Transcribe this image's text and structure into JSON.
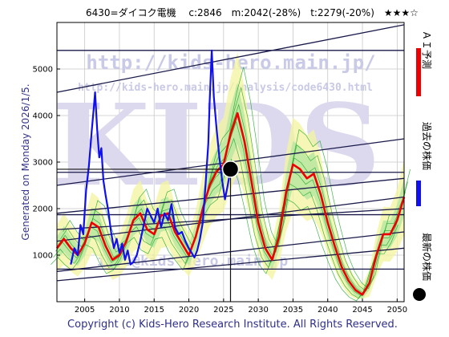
{
  "header": {
    "title": "6430=ダイコク電機　 c:2846　m:2042(-28%)　t:2279(-20%)　★★★☆"
  },
  "side_label": "Generated on Monday 2026/1/5.",
  "footer": "Copyright (c) Kids-Hero Research Institute. All Rights Reserved.",
  "watermark": {
    "url": "http://kids-hero.main.jp/",
    "analysis_url": "http://kids-hero.main.jp/analysis/code6430.html",
    "big_text": "KIDS",
    "email": "info@kids-hero.main.jp"
  },
  "legend": [
    {
      "label": "ＡＩ予測",
      "color": "#ee0000",
      "kind": "line"
    },
    {
      "label": "過去の株価",
      "color": "#1010ee",
      "kind": "line"
    },
    {
      "label": "最新の株価",
      "color": "#000000",
      "kind": "dot"
    }
  ],
  "chart_data": {
    "type": "line",
    "x_ticks": [
      2005,
      2010,
      2015,
      2020,
      2025,
      2030,
      2035,
      2040,
      2045,
      2050
    ],
    "y_ticks": [
      1000,
      2000,
      3000,
      4000,
      5000
    ],
    "xlim": [
      2001,
      2051
    ],
    "ylim": [
      0,
      6000
    ],
    "grid": true,
    "latest_point": {
      "x": 2026.0,
      "y": 2846
    },
    "series": [
      {
        "id": "past",
        "color": "#1010ee",
        "points": [
          [
            2003,
            800
          ],
          [
            2003.5,
            1150
          ],
          [
            2004,
            1000
          ],
          [
            2004.4,
            1650
          ],
          [
            2004.8,
            1450
          ],
          [
            2005.2,
            2400
          ],
          [
            2005.6,
            2900
          ],
          [
            2006,
            3650
          ],
          [
            2006.3,
            4150
          ],
          [
            2006.5,
            4500
          ],
          [
            2006.8,
            3700
          ],
          [
            2007.1,
            3100
          ],
          [
            2007.4,
            3300
          ],
          [
            2007.7,
            2600
          ],
          [
            2008,
            2300
          ],
          [
            2008.4,
            1950
          ],
          [
            2008.8,
            1500
          ],
          [
            2009.2,
            1150
          ],
          [
            2009.6,
            1350
          ],
          [
            2010,
            1050
          ],
          [
            2010.4,
            1250
          ],
          [
            2010.8,
            900
          ],
          [
            2011.2,
            1100
          ],
          [
            2011.6,
            800
          ],
          [
            2012,
            850
          ],
          [
            2012.5,
            1000
          ],
          [
            2013,
            1300
          ],
          [
            2013.5,
            1650
          ],
          [
            2014,
            2000
          ],
          [
            2014.5,
            1850
          ],
          [
            2015,
            1700
          ],
          [
            2015.5,
            2000
          ],
          [
            2016,
            1600
          ],
          [
            2016.5,
            1900
          ],
          [
            2017,
            1750
          ],
          [
            2017.5,
            2100
          ],
          [
            2018,
            1600
          ],
          [
            2018.5,
            1450
          ],
          [
            2019,
            1500
          ],
          [
            2019.5,
            1300
          ],
          [
            2020,
            1150
          ],
          [
            2020.4,
            1050
          ],
          [
            2020.8,
            950
          ],
          [
            2021.2,
            1100
          ],
          [
            2021.6,
            1350
          ],
          [
            2022,
            1700
          ],
          [
            2022.4,
            2500
          ],
          [
            2022.8,
            3400
          ],
          [
            2023,
            4300
          ],
          [
            2023.3,
            5400
          ],
          [
            2023.6,
            4400
          ],
          [
            2024,
            3700
          ],
          [
            2024.4,
            3100
          ],
          [
            2024.8,
            2600
          ],
          [
            2025.2,
            2200
          ],
          [
            2025.6,
            2500
          ],
          [
            2026,
            2846
          ]
        ]
      },
      {
        "id": "forecast",
        "color": "#ee0000",
        "points": [
          [
            2001,
            1150
          ],
          [
            2002,
            1350
          ],
          [
            2003,
            1150
          ],
          [
            2004,
            1000
          ],
          [
            2005,
            1250
          ],
          [
            2006,
            1700
          ],
          [
            2007,
            1600
          ],
          [
            2008,
            1200
          ],
          [
            2009,
            900
          ],
          [
            2010,
            1000
          ],
          [
            2011,
            1300
          ],
          [
            2012,
            1750
          ],
          [
            2013,
            1900
          ],
          [
            2014,
            1550
          ],
          [
            2015,
            1450
          ],
          [
            2016,
            1850
          ],
          [
            2017,
            1900
          ],
          [
            2018,
            1500
          ],
          [
            2019,
            1250
          ],
          [
            2020,
            1000
          ],
          [
            2021,
            1400
          ],
          [
            2022,
            2000
          ],
          [
            2023,
            2500
          ],
          [
            2024,
            2800
          ],
          [
            2025,
            2950
          ],
          [
            2026,
            3600
          ],
          [
            2027,
            4050
          ],
          [
            2028,
            3450
          ],
          [
            2029,
            2600
          ],
          [
            2030,
            1700
          ],
          [
            2031,
            1150
          ],
          [
            2032,
            900
          ],
          [
            2033,
            1400
          ],
          [
            2034,
            2350
          ],
          [
            2035,
            2950
          ],
          [
            2036,
            2850
          ],
          [
            2037,
            2650
          ],
          [
            2038,
            2750
          ],
          [
            2039,
            2300
          ],
          [
            2040,
            1700
          ],
          [
            2041,
            1200
          ],
          [
            2042,
            750
          ],
          [
            2043,
            450
          ],
          [
            2044,
            250
          ],
          [
            2045,
            150
          ],
          [
            2046,
            400
          ],
          [
            2047,
            1000
          ],
          [
            2048,
            1450
          ],
          [
            2049,
            1450
          ],
          [
            2050,
            1750
          ],
          [
            2051,
            2250
          ]
        ]
      }
    ]
  },
  "colors": {
    "band_outer": "#f3f49d",
    "band_inner": "#b7e6a0",
    "band_lines": "#21a82a",
    "trend": "#1a1a4a",
    "grid": "#c8c8c8",
    "axes": "#000000",
    "past": "#1010ee",
    "forecast": "#ee0000"
  }
}
